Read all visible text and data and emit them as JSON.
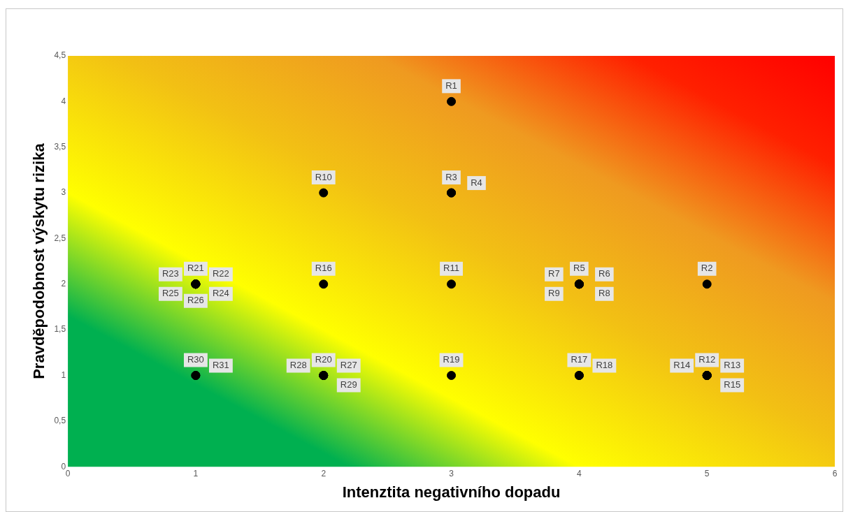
{
  "chart_data": {
    "type": "scatter",
    "xlabel": "Intenztita negativního dopadu",
    "ylabel": "Pravděpodobnost výskytu rizika",
    "x": [
      3,
      5,
      3,
      3,
      4,
      4,
      4,
      4,
      4,
      2,
      3,
      5,
      5,
      5,
      5,
      2,
      4,
      4,
      3,
      2,
      1,
      1,
      1,
      1,
      1,
      1,
      2,
      2,
      2,
      1,
      1
    ],
    "values": [
      4,
      2,
      3,
      3,
      2,
      2,
      2,
      2,
      2,
      3,
      2,
      1,
      1,
      1,
      1,
      2,
      1,
      1,
      1,
      1,
      2,
      2,
      2,
      2,
      2,
      2,
      1,
      1,
      1,
      1,
      1
    ],
    "value_labels": [
      "R1",
      "R2",
      "R3",
      "R4",
      "R5",
      "R6",
      "R7",
      "R8",
      "R9",
      "R10",
      "R11",
      "R12",
      "R13",
      "R14",
      "R15",
      "R16",
      "R17",
      "R18",
      "R19",
      "R20",
      "R21",
      "R22",
      "R23",
      "R24",
      "R25",
      "R26",
      "R27",
      "R28",
      "R29",
      "R30",
      "R31"
    ],
    "color": "#000000",
    "marker": "circle",
    "xlim": [
      0,
      6
    ],
    "xticks": [
      0,
      1,
      2,
      3,
      4,
      5,
      6
    ],
    "ylim": [
      0,
      4.5
    ],
    "yticks": [
      0,
      {
        "value": 0.5,
        "label": "0,5"
      },
      1,
      {
        "value": 1.5,
        "label": "1,5"
      },
      2,
      {
        "value": 2.5,
        "label": "2,5"
      },
      3,
      {
        "value": 3.5,
        "label": "3,5"
      },
      4,
      {
        "value": 4.5,
        "label": "4,5"
      }
    ]
  }
}
